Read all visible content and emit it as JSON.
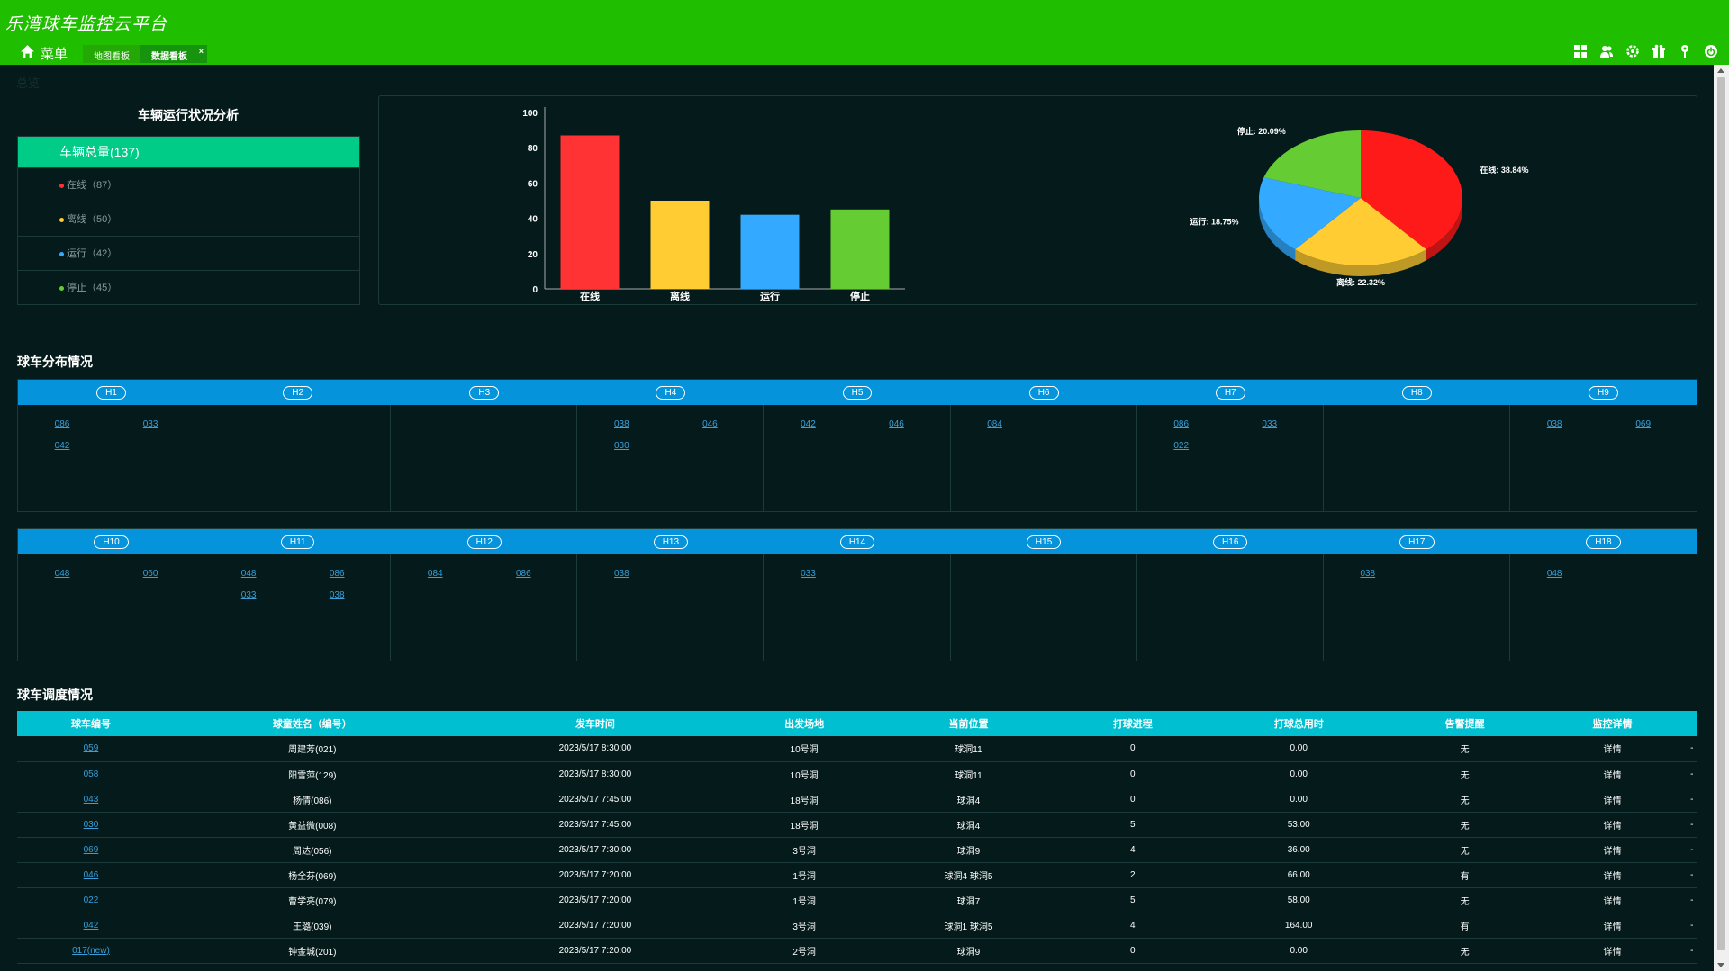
{
  "header": {
    "title": "乐湾球车监控云平台",
    "menu_label": "菜单",
    "tabs": [
      {
        "label": "地图看板"
      },
      {
        "label": "数据看板",
        "close": "×"
      }
    ],
    "icons": [
      "grid-icon",
      "user-group-icon",
      "gear-icon",
      "gift-icon",
      "map-pin-icon",
      "power-icon"
    ]
  },
  "page": {
    "crumb": "总览"
  },
  "status": {
    "title": "车辆运行状况分析",
    "total_label": "车辆总量(137)",
    "rows": [
      {
        "label": "在线（87）",
        "color": "#ff3333"
      },
      {
        "label": "离线（50）",
        "color": "#ffcc33"
      },
      {
        "label": "运行（42）",
        "color": "#33aaff"
      },
      {
        "label": "停止（45）",
        "color": "#66cc33"
      }
    ]
  },
  "chart_data": [
    {
      "type": "bar",
      "categories": [
        "在线",
        "离线",
        "运行",
        "停止"
      ],
      "values": [
        87,
        50,
        42,
        45
      ],
      "colors": [
        "#ff3333",
        "#ffcc33",
        "#33aaff",
        "#66cc33"
      ],
      "ylim": [
        0,
        100
      ],
      "yticks": [
        0,
        20,
        40,
        60,
        80,
        100
      ],
      "grid": false
    },
    {
      "type": "pie",
      "labels": [
        "在线",
        "离线",
        "运行",
        "停止"
      ],
      "values": [
        38.84,
        22.32,
        18.75,
        20.09
      ],
      "slice_labels": [
        "在线: 38.84%",
        "离线: 22.32%",
        "运行: 18.75%",
        "停止: 20.09%"
      ],
      "colors": [
        "#ff1a1a",
        "#ffcc33",
        "#33aaff",
        "#66cc33"
      ],
      "style": "3d"
    }
  ],
  "distribution": {
    "title": "球车分布情况",
    "rows": [
      {
        "holes": [
          {
            "name": "H1",
            "carts": [
              "086",
              "033",
              "042"
            ]
          },
          {
            "name": "H2",
            "carts": []
          },
          {
            "name": "H3",
            "carts": []
          },
          {
            "name": "H4",
            "carts": [
              "038",
              "046",
              "030"
            ]
          },
          {
            "name": "H5",
            "carts": [
              "042",
              "046"
            ]
          },
          {
            "name": "H6",
            "carts": [
              "084"
            ]
          },
          {
            "name": "H7",
            "carts": [
              "086",
              "033",
              "022"
            ]
          },
          {
            "name": "H8",
            "carts": []
          },
          {
            "name": "H9",
            "carts": [
              "038",
              "069"
            ]
          }
        ]
      },
      {
        "holes": [
          {
            "name": "H10",
            "carts": [
              "048",
              "060"
            ]
          },
          {
            "name": "H11",
            "carts": [
              "048",
              "086",
              "033",
              "038"
            ]
          },
          {
            "name": "H12",
            "carts": [
              "084",
              "086"
            ]
          },
          {
            "name": "H13",
            "carts": [
              "038"
            ]
          },
          {
            "name": "H14",
            "carts": [
              "033"
            ]
          },
          {
            "name": "H15",
            "carts": []
          },
          {
            "name": "H16",
            "carts": []
          },
          {
            "name": "H17",
            "carts": [
              "038"
            ]
          },
          {
            "name": "H18",
            "carts": [
              "048"
            ]
          }
        ]
      }
    ]
  },
  "schedule": {
    "title": "球车调度情况",
    "columns": [
      "球车编号",
      "球童姓名（编号）",
      "发车时间",
      "出发场地",
      "当前位置",
      "打球进程",
      "打球总用时",
      "告警提醒",
      "监控详情",
      ""
    ],
    "rows": [
      [
        "059",
        "周建芳(021)",
        "2023/5/17 8:30:00",
        "10号洞",
        "球洞11",
        "0",
        "0.00",
        "无",
        "详情",
        "-"
      ],
      [
        "058",
        "阳雪萍(129)",
        "2023/5/17 8:30:00",
        "10号洞",
        "球洞11",
        "0",
        "0.00",
        "无",
        "详情",
        "-"
      ],
      [
        "043",
        "杨倩(086)",
        "2023/5/17 7:45:00",
        "18号洞",
        "球洞4",
        "0",
        "0.00",
        "无",
        "详情",
        "-"
      ],
      [
        "030",
        "黄益微(008)",
        "2023/5/17 7:45:00",
        "18号洞",
        "球洞4",
        "5",
        "53.00",
        "无",
        "详情",
        "-"
      ],
      [
        "069",
        "周达(056)",
        "2023/5/17 7:30:00",
        "3号洞",
        "球洞9",
        "4",
        "36.00",
        "无",
        "详情",
        "-"
      ],
      [
        "046",
        "杨全芬(069)",
        "2023/5/17 7:20:00",
        "1号洞",
        "球洞4 球洞5",
        "2",
        "66.00",
        "有",
        "详情",
        "-"
      ],
      [
        "022",
        "曹学亮(079)",
        "2023/5/17 7:20:00",
        "1号洞",
        "球洞7",
        "5",
        "58.00",
        "无",
        "详情",
        "-"
      ],
      [
        "042",
        "王璐(039)",
        "2023/5/17 7:20:00",
        "3号洞",
        "球洞1 球洞5",
        "4",
        "164.00",
        "有",
        "详情",
        "-"
      ],
      [
        "017(new)",
        "钟金城(201)",
        "2023/5/17 7:20:00",
        "2号洞",
        "球洞9",
        "0",
        "0.00",
        "无",
        "详情",
        "-"
      ]
    ]
  }
}
